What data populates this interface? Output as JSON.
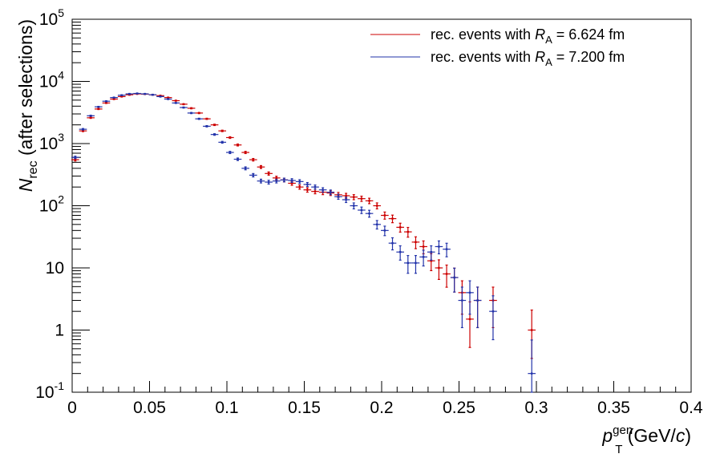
{
  "chart_data": {
    "type": "scatter",
    "xlabel": {
      "main": "p",
      "sub": "T",
      "sup": "gen",
      "unit": " (GeV/",
      "unit_italic": "c",
      "unit_end": ")"
    },
    "ylabel": {
      "main": "N",
      "sub": "rec",
      "rest": " (after selections)"
    },
    "xlim": [
      0,
      0.4
    ],
    "ylim": [
      0.1,
      100000
    ],
    "y_scale": "log",
    "grid": false,
    "legend_position": "top-right",
    "x_ticks": [
      "0",
      "0.05",
      "0.1",
      "0.15",
      "0.2",
      "0.25",
      "0.3",
      "0.35",
      "0.4"
    ],
    "y_ticks": [
      {
        "text": "10",
        "sup": "-1"
      },
      {
        "text": "1",
        "sup": ""
      },
      {
        "text": "10",
        "sup": ""
      },
      {
        "text": "10",
        "sup": "2"
      },
      {
        "text": "10",
        "sup": "3"
      },
      {
        "text": "10",
        "sup": "4"
      },
      {
        "text": "10",
        "sup": "5"
      }
    ],
    "series": [
      {
        "name": "rec. events with R_A = 6.624 fm",
        "legend": {
          "pre": "rec. events with ",
          "var": "R",
          "sub": "A",
          "post": " = 6.624 fm"
        },
        "color": "#cc0000",
        "points": [
          [
            0.002,
            550
          ],
          [
            0.007,
            1600
          ],
          [
            0.012,
            2600
          ],
          [
            0.017,
            3600
          ],
          [
            0.022,
            4500
          ],
          [
            0.027,
            5200
          ],
          [
            0.032,
            5700
          ],
          [
            0.037,
            6100
          ],
          [
            0.042,
            6300
          ],
          [
            0.047,
            6250
          ],
          [
            0.052,
            6100
          ],
          [
            0.057,
            5900
          ],
          [
            0.062,
            5500
          ],
          [
            0.067,
            4900
          ],
          [
            0.072,
            4300
          ],
          [
            0.077,
            3700
          ],
          [
            0.082,
            3100
          ],
          [
            0.087,
            2500
          ],
          [
            0.092,
            2000
          ],
          [
            0.097,
            1600
          ],
          [
            0.102,
            1250
          ],
          [
            0.107,
            950
          ],
          [
            0.112,
            720
          ],
          [
            0.117,
            550
          ],
          [
            0.122,
            420
          ],
          [
            0.127,
            330
          ],
          [
            0.132,
            280
          ],
          [
            0.137,
            260
          ],
          [
            0.142,
            230
          ],
          [
            0.147,
            200
          ],
          [
            0.152,
            180
          ],
          [
            0.157,
            170
          ],
          [
            0.162,
            165
          ],
          [
            0.167,
            160
          ],
          [
            0.172,
            150
          ],
          [
            0.177,
            145
          ],
          [
            0.182,
            138
          ],
          [
            0.187,
            130
          ],
          [
            0.192,
            120
          ],
          [
            0.197,
            100
          ],
          [
            0.202,
            70
          ],
          [
            0.207,
            62
          ],
          [
            0.212,
            45
          ],
          [
            0.217,
            38
          ],
          [
            0.222,
            26
          ],
          [
            0.227,
            22
          ],
          [
            0.232,
            13
          ],
          [
            0.237,
            10
          ],
          [
            0.242,
            8
          ],
          [
            0.247,
            7
          ],
          [
            0.252,
            4
          ],
          [
            0.257,
            1.5
          ],
          [
            0.262,
            3
          ],
          [
            0.272,
            3
          ],
          [
            0.297,
            1
          ]
        ]
      },
      {
        "name": "rec. events with R_A = 7.200 fm",
        "legend": {
          "pre": "rec. events with ",
          "var": "R",
          "sub": "A",
          "post": " = 7.200 fm"
        },
        "color": "#2233aa",
        "points": [
          [
            0.002,
            600
          ],
          [
            0.007,
            1700
          ],
          [
            0.012,
            2800
          ],
          [
            0.017,
            3900
          ],
          [
            0.022,
            4800
          ],
          [
            0.027,
            5500
          ],
          [
            0.032,
            6000
          ],
          [
            0.037,
            6300
          ],
          [
            0.042,
            6400
          ],
          [
            0.047,
            6300
          ],
          [
            0.052,
            6100
          ],
          [
            0.057,
            5700
          ],
          [
            0.062,
            5200
          ],
          [
            0.067,
            4500
          ],
          [
            0.072,
            3800
          ],
          [
            0.077,
            3100
          ],
          [
            0.082,
            2500
          ],
          [
            0.087,
            1900
          ],
          [
            0.092,
            1400
          ],
          [
            0.097,
            1050
          ],
          [
            0.102,
            720
          ],
          [
            0.107,
            560
          ],
          [
            0.112,
            400
          ],
          [
            0.117,
            310
          ],
          [
            0.122,
            250
          ],
          [
            0.127,
            240
          ],
          [
            0.132,
            250
          ],
          [
            0.137,
            260
          ],
          [
            0.142,
            255
          ],
          [
            0.147,
            245
          ],
          [
            0.152,
            220
          ],
          [
            0.157,
            200
          ],
          [
            0.162,
            180
          ],
          [
            0.167,
            165
          ],
          [
            0.172,
            140
          ],
          [
            0.177,
            125
          ],
          [
            0.182,
            100
          ],
          [
            0.187,
            85
          ],
          [
            0.192,
            75
          ],
          [
            0.197,
            50
          ],
          [
            0.202,
            40
          ],
          [
            0.207,
            25
          ],
          [
            0.212,
            18
          ],
          [
            0.217,
            12
          ],
          [
            0.222,
            12
          ],
          [
            0.227,
            15
          ],
          [
            0.232,
            18
          ],
          [
            0.237,
            22
          ],
          [
            0.242,
            20
          ],
          [
            0.247,
            7
          ],
          [
            0.252,
            3
          ],
          [
            0.257,
            4
          ],
          [
            0.262,
            3
          ],
          [
            0.272,
            2
          ],
          [
            0.297,
            0.2
          ]
        ]
      }
    ]
  }
}
